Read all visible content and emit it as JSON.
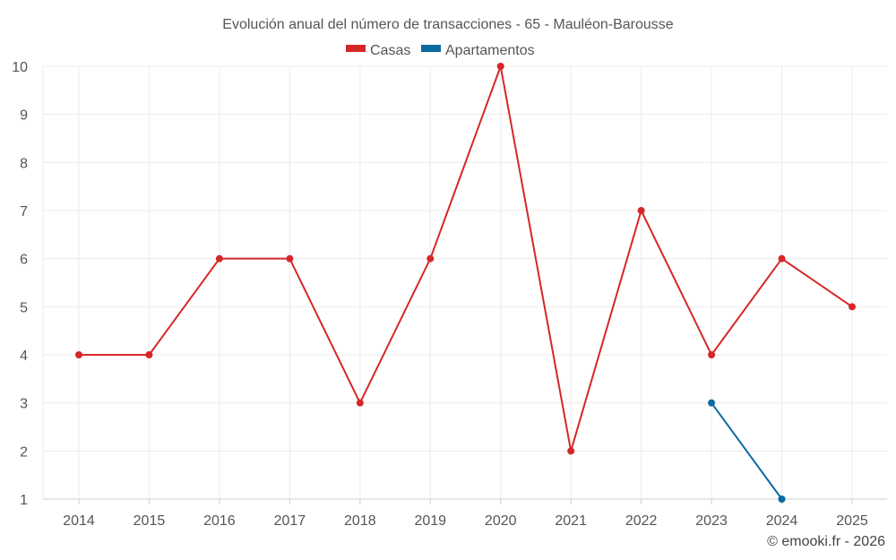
{
  "chart_data": {
    "type": "line",
    "title": "Evolución anual del número de transacciones - 65 - Mauléon-Barousse",
    "categories": [
      "2014",
      "2015",
      "2016",
      "2017",
      "2018",
      "2019",
      "2020",
      "2021",
      "2022",
      "2023",
      "2024",
      "2025"
    ],
    "ylim": [
      1,
      10
    ],
    "yticks": [
      1,
      2,
      3,
      4,
      5,
      6,
      7,
      8,
      9,
      10
    ],
    "grid": true,
    "legend_position": "top-center",
    "series": [
      {
        "name": "Casas",
        "color": "#d62728",
        "values": [
          4,
          4,
          6,
          6,
          3,
          6,
          10,
          2,
          7,
          4,
          6,
          5
        ]
      },
      {
        "name": "Apartamentos",
        "color": "#0a6aa1",
        "values": [
          null,
          null,
          null,
          null,
          null,
          null,
          null,
          null,
          null,
          3,
          1,
          null
        ]
      }
    ],
    "credit": "© emooki.fr - 2026"
  }
}
